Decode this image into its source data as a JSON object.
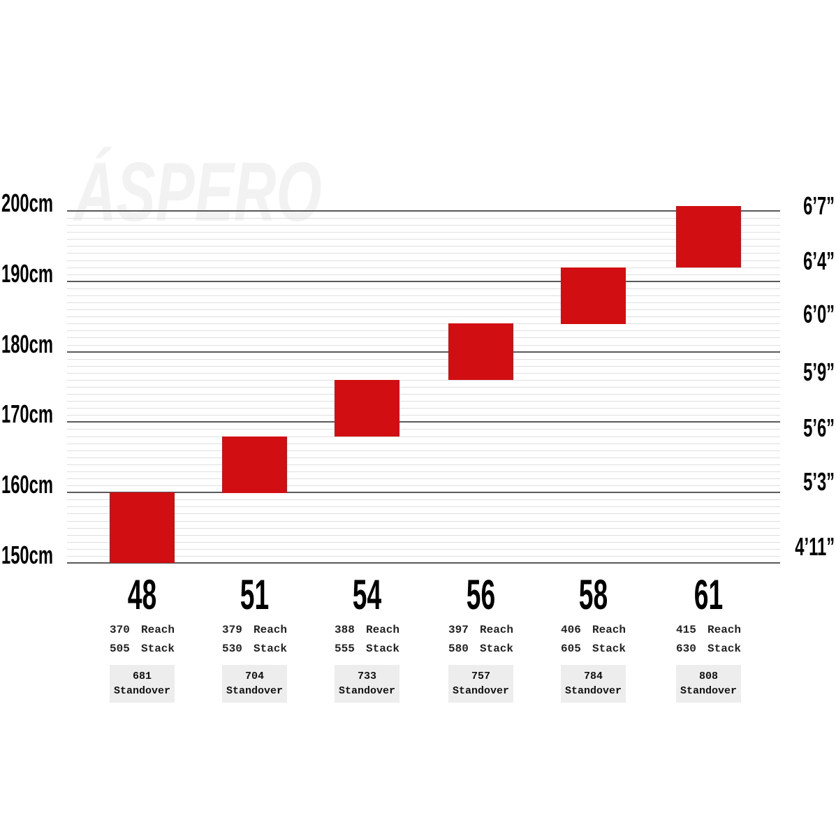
{
  "watermark": "ÁSPERO",
  "colors": {
    "bar": "#d10e11",
    "major_gridline": "#5a5a5a",
    "minor_gridline": "#dfdfdf",
    "standover_bg": "#ededed",
    "spec_text": "#222222",
    "axis_text": "#000000",
    "watermark": "#f2f2f2"
  },
  "chart_data": {
    "type": "bar",
    "description": "Rider height to frame size chart; each red block spans the rider-height range fitting that frame size",
    "grid": {
      "major_step_cm": 10,
      "minor_step_cm": 1,
      "ylim_cm": [
        150,
        200.7
      ]
    },
    "left_axis_ticks": [
      {
        "label": "200cm",
        "cm": 200
      },
      {
        "label": "190cm",
        "cm": 190
      },
      {
        "label": "180cm",
        "cm": 180
      },
      {
        "label": "170cm",
        "cm": 170
      },
      {
        "label": "160cm",
        "cm": 160
      },
      {
        "label": "150cm",
        "cm": 150
      }
    ],
    "right_axis_ticks": [
      {
        "label": "6’7”",
        "cm": 200.9
      },
      {
        "label": "6’4”",
        "cm": 193.1
      },
      {
        "label": "6’0”",
        "cm": 185.5
      },
      {
        "label": "5’9”",
        "cm": 177.3
      },
      {
        "label": "5’6”",
        "cm": 169.3
      },
      {
        "label": "5’3”",
        "cm": 161.7
      },
      {
        "label": "4’11”",
        "cm": 152.5
      }
    ],
    "categories": [
      "48",
      "51",
      "54",
      "56",
      "58",
      "61"
    ],
    "sizes": [
      {
        "size": "48",
        "height_min_cm": 150,
        "height_max_cm": 160,
        "reach": "370",
        "stack": "505",
        "standover": "681"
      },
      {
        "size": "51",
        "height_min_cm": 160,
        "height_max_cm": 168,
        "reach": "379",
        "stack": "530",
        "standover": "704"
      },
      {
        "size": "54",
        "height_min_cm": 168,
        "height_max_cm": 176,
        "reach": "388",
        "stack": "555",
        "standover": "733"
      },
      {
        "size": "56",
        "height_min_cm": 176,
        "height_max_cm": 184,
        "reach": "397",
        "stack": "580",
        "standover": "757"
      },
      {
        "size": "58",
        "height_min_cm": 184,
        "height_max_cm": 192,
        "reach": "406",
        "stack": "605",
        "standover": "784"
      },
      {
        "size": "61",
        "height_min_cm": 192,
        "height_max_cm": 200.7,
        "reach": "415",
        "stack": "630",
        "standover": "808"
      }
    ],
    "labels": {
      "reach": "Reach",
      "stack": "Stack",
      "standover": "Standover"
    }
  }
}
